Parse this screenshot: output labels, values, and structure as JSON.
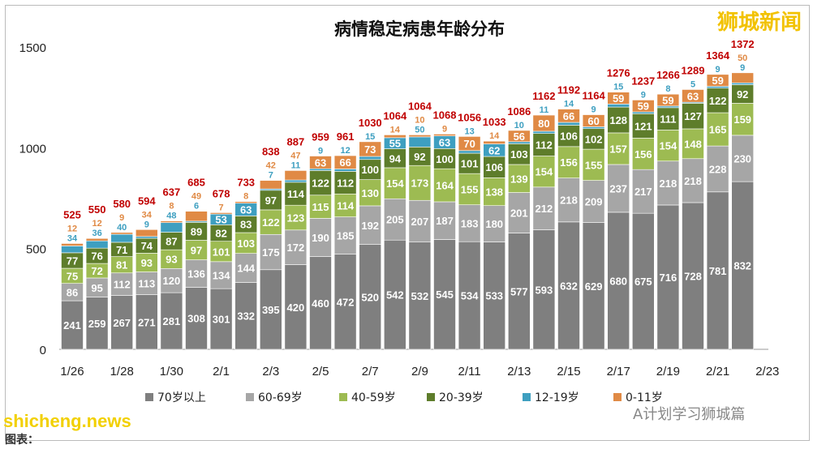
{
  "chart_data": {
    "type": "bar",
    "stacked": true,
    "title": "病情稳定病患年龄分布",
    "ylim": [
      0,
      1500
    ],
    "yticks": [
      0,
      500,
      1000,
      1500
    ],
    "grid": false,
    "legend_position": "bottom",
    "categories": [
      "1/26",
      "1/27",
      "1/28",
      "1/29",
      "1/30",
      "1/31",
      "2/1",
      "2/2",
      "2/3",
      "2/4",
      "2/5",
      "2/6",
      "2/7",
      "2/8",
      "2/9",
      "2/10",
      "2/11",
      "2/12",
      "2/13",
      "2/14",
      "2/15",
      "2/16",
      "2/17",
      "2/18",
      "2/19",
      "2/20",
      "2/21",
      "2/22"
    ],
    "xtick_labels": [
      "1/26",
      "1/28",
      "1/30",
      "2/1",
      "2/3",
      "2/5",
      "2/7",
      "2/9",
      "2/11",
      "2/13",
      "2/15",
      "2/17",
      "2/19",
      "2/21",
      "2/23"
    ],
    "series": [
      {
        "name": "70岁以上",
        "color": "#7f7f7f",
        "values": [
          241,
          259,
          267,
          271,
          281,
          308,
          301,
          332,
          395,
          420,
          460,
          472,
          520,
          542,
          532,
          545,
          534,
          533,
          577,
          593,
          632,
          629,
          680,
          675,
          716,
          728,
          781,
          832
        ]
      },
      {
        "name": "60-69岁",
        "color": "#a6a6a6",
        "values": [
          86,
          95,
          112,
          113,
          120,
          136,
          134,
          144,
          175,
          172,
          190,
          185,
          192,
          205,
          207,
          187,
          183,
          180,
          201,
          212,
          218,
          209,
          237,
          217,
          218,
          218,
          228,
          230
        ]
      },
      {
        "name": "40-59岁",
        "color": "#9dbb52",
        "values": [
          75,
          72,
          81,
          93,
          93,
          97,
          101,
          103,
          122,
          123,
          115,
          114,
          130,
          154,
          173,
          164,
          155,
          138,
          139,
          154,
          156,
          155,
          157,
          156,
          154,
          148,
          165,
          159
        ]
      },
      {
        "name": "20-39岁",
        "color": "#5e7d2b",
        "values": [
          77,
          76,
          71,
          74,
          87,
          89,
          82,
          83,
          97,
          114,
          122,
          112,
          100,
          94,
          92,
          100,
          101,
          106,
          103,
          112,
          106,
          102,
          128,
          121,
          111,
          127,
          122,
          92
        ]
      },
      {
        "name": "12-19岁",
        "color": "#3e9fc0",
        "values": [
          34,
          36,
          40,
          9,
          48,
          6,
          53,
          63,
          7,
          11,
          9,
          12,
          15,
          55,
          50,
          63,
          13,
          62,
          10,
          11,
          14,
          9,
          15,
          9,
          8,
          5,
          9,
          9
        ]
      },
      {
        "name": "0-11岁",
        "color": "#e08a45",
        "values": [
          12,
          12,
          9,
          34,
          8,
          49,
          7,
          8,
          42,
          47,
          63,
          66,
          73,
          14,
          10,
          9,
          70,
          14,
          56,
          80,
          66,
          60,
          59,
          59,
          59,
          63,
          59,
          50
        ]
      }
    ],
    "totals": [
      525,
      550,
      580,
      594,
      637,
      685,
      678,
      733,
      838,
      887,
      959,
      961,
      1030,
      1064,
      1064,
      1068,
      1056,
      1033,
      1086,
      1162,
      1192,
      1164,
      1276,
      1237,
      1266,
      1289,
      1364,
      1372
    ],
    "total_label_color": "#c00000"
  },
  "watermarks": {
    "top_right": "狮城新闻",
    "bottom_left": "shicheng.news",
    "caption": "图表：",
    "wechat": "A计划学习狮城篇"
  }
}
